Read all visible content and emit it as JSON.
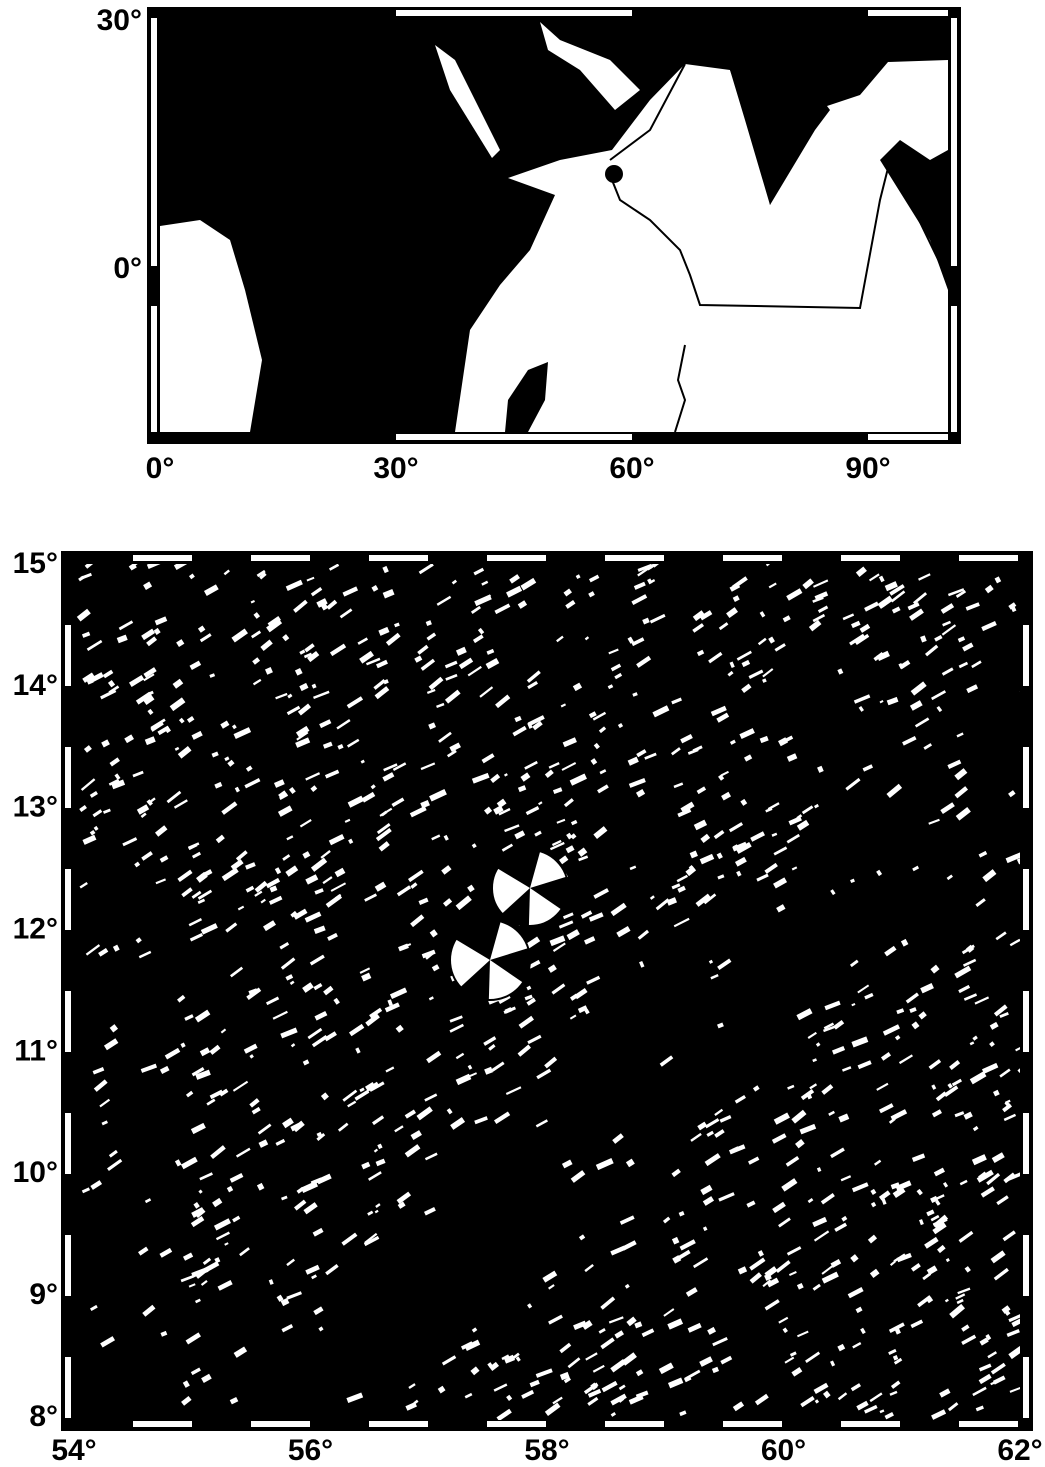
{
  "overview_map": {
    "x_ticks": [
      "0°",
      "30°",
      "60°",
      "90°"
    ],
    "y_ticks": [
      "30°",
      "0°"
    ]
  },
  "detail_map": {
    "x_ticks": [
      "54°",
      "56°",
      "58°",
      "60°",
      "62°"
    ],
    "y_ticks": [
      "15°",
      "14°",
      "13°",
      "12°",
      "11°",
      "10°",
      "9°",
      "8°"
    ]
  }
}
